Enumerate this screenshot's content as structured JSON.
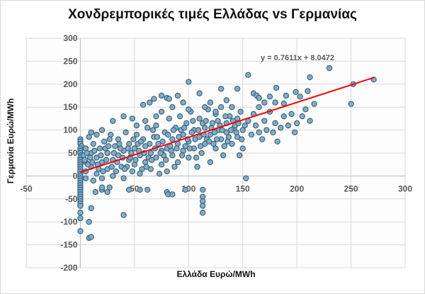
{
  "chart_data": {
    "type": "scatter",
    "title": "Χονδρεμπορικές τιμές Ελλάδας vs Γερμανίας",
    "xlabel": "Ελλάδα Ευρώ/MWh",
    "ylabel": "Γερμανία Ευρώ/MWh",
    "xlim": [
      -50,
      300
    ],
    "ylim": [
      -200,
      300
    ],
    "xticks": [
      "-50",
      "0",
      "50",
      "100",
      "150",
      "200",
      "250",
      "300"
    ],
    "xtick_values": [
      -50,
      0,
      50,
      100,
      150,
      200,
      250,
      300
    ],
    "yticks": [
      "300",
      "250",
      "200",
      "150",
      "100",
      "50",
      "0",
      "-50",
      "-100",
      "-150",
      "-200"
    ],
    "ytick_values": [
      300,
      250,
      200,
      150,
      100,
      50,
      0,
      -50,
      -100,
      -150,
      -200
    ],
    "grid": true,
    "legend": "none",
    "trendline": {
      "slope": 0.7611,
      "intercept": 8.0472,
      "x_range": [
        0,
        271
      ],
      "equation": "y = 0.7611x + 8.0472",
      "color": "#ff0000"
    },
    "marker_fill": "#8fa8bf",
    "marker_stroke": "#2e6b8a",
    "points": [
      [
        0,
        80
      ],
      [
        0,
        75
      ],
      [
        0,
        70
      ],
      [
        1,
        65
      ],
      [
        0,
        60
      ],
      [
        0,
        55
      ],
      [
        0,
        50
      ],
      [
        1,
        45
      ],
      [
        0,
        40
      ],
      [
        0,
        35
      ],
      [
        0,
        30
      ],
      [
        0,
        25
      ],
      [
        0,
        20
      ],
      [
        0,
        15
      ],
      [
        0,
        10
      ],
      [
        0,
        5
      ],
      [
        0,
        0
      ],
      [
        0,
        -5
      ],
      [
        0,
        -10
      ],
      [
        0,
        -15
      ],
      [
        0,
        -20
      ],
      [
        0,
        -25
      ],
      [
        0,
        -30
      ],
      [
        0,
        -35
      ],
      [
        0,
        -40
      ],
      [
        0,
        -45
      ],
      [
        0,
        -50
      ],
      [
        0,
        -55
      ],
      [
        0,
        -60
      ],
      [
        0,
        -65
      ],
      [
        0,
        -80
      ],
      [
        0,
        -92
      ],
      [
        0,
        -120
      ],
      [
        8,
        -135
      ],
      [
        10,
        -133
      ],
      [
        8,
        -100
      ],
      [
        10,
        -70
      ],
      [
        40,
        -85
      ],
      [
        45,
        -30
      ],
      [
        14,
        -35
      ],
      [
        20,
        -30
      ],
      [
        20,
        -25
      ],
      [
        25,
        -35
      ],
      [
        27,
        -25
      ],
      [
        55,
        -30
      ],
      [
        62,
        -30
      ],
      [
        80,
        -35
      ],
      [
        81,
        -40
      ],
      [
        85,
        -40
      ],
      [
        97,
        -30
      ],
      [
        113,
        -30
      ],
      [
        113,
        -45
      ],
      [
        113,
        -55
      ],
      [
        113,
        -65
      ],
      [
        113,
        -80
      ],
      [
        153,
        -5
      ],
      [
        230,
        235
      ],
      [
        212,
        215
      ],
      [
        271,
        210
      ],
      [
        252,
        200
      ],
      [
        250,
        157
      ],
      [
        190,
        175
      ],
      [
        155,
        220
      ],
      [
        181,
        192
      ],
      [
        199,
        183
      ],
      [
        203,
        173
      ],
      [
        210,
        185
      ],
      [
        216,
        157
      ],
      [
        175,
        173
      ],
      [
        180,
        160
      ],
      [
        188,
        158
      ],
      [
        160,
        180
      ],
      [
        163,
        175
      ],
      [
        165,
        170
      ],
      [
        170,
        160
      ],
      [
        165,
        150
      ],
      [
        145,
        190
      ],
      [
        130,
        190
      ],
      [
        110,
        180
      ],
      [
        100,
        205
      ],
      [
        90,
        175
      ],
      [
        80,
        170
      ],
      [
        82,
        168
      ],
      [
        75,
        175
      ],
      [
        40,
        130
      ],
      [
        30,
        120
      ],
      [
        20,
        100
      ],
      [
        10,
        95
      ],
      [
        5,
        60
      ],
      [
        5,
        30
      ],
      [
        5,
        10
      ],
      [
        5,
        -5
      ],
      [
        8,
        85
      ],
      [
        10,
        50
      ],
      [
        10,
        20
      ],
      [
        12,
        70
      ],
      [
        15,
        40
      ],
      [
        15,
        5
      ],
      [
        15,
        90
      ],
      [
        18,
        60
      ],
      [
        20,
        30
      ],
      [
        20,
        -5
      ],
      [
        22,
        75
      ],
      [
        25,
        50
      ],
      [
        25,
        15
      ],
      [
        28,
        90
      ],
      [
        30,
        35
      ],
      [
        30,
        0
      ],
      [
        32,
        65
      ],
      [
        35,
        45
      ],
      [
        35,
        80
      ],
      [
        38,
        20
      ],
      [
        40,
        55
      ],
      [
        40,
        -5
      ],
      [
        42,
        95
      ],
      [
        45,
        35
      ],
      [
        45,
        70
      ],
      [
        48,
        10
      ],
      [
        50,
        60
      ],
      [
        50,
        25
      ],
      [
        52,
        90
      ],
      [
        55,
        45
      ],
      [
        55,
        5
      ],
      [
        58,
        80
      ],
      [
        60,
        30
      ],
      [
        60,
        65
      ],
      [
        62,
        105
      ],
      [
        65,
        50
      ],
      [
        65,
        15
      ],
      [
        68,
        85
      ],
      [
        70,
        40
      ],
      [
        70,
        110
      ],
      [
        72,
        70
      ],
      [
        75,
        25
      ],
      [
        75,
        55
      ],
      [
        78,
        95
      ],
      [
        80,
        60
      ],
      [
        80,
        10
      ],
      [
        82,
        125
      ],
      [
        85,
        45
      ],
      [
        85,
        80
      ],
      [
        88,
        105
      ],
      [
        90,
        30
      ],
      [
        90,
        70
      ],
      [
        92,
        130
      ],
      [
        95,
        55
      ],
      [
        95,
        90
      ],
      [
        98,
        115
      ],
      [
        100,
        40
      ],
      [
        100,
        75
      ],
      [
        102,
        140
      ],
      [
        105,
        60
      ],
      [
        105,
        100
      ],
      [
        108,
        20
      ],
      [
        110,
        85
      ],
      [
        110,
        125
      ],
      [
        112,
        50
      ],
      [
        115,
        105
      ],
      [
        115,
        70
      ],
      [
        118,
        145
      ],
      [
        120,
        30
      ],
      [
        120,
        90
      ],
      [
        122,
        115
      ],
      [
        125,
        60
      ],
      [
        125,
        135
      ],
      [
        128,
        100
      ],
      [
        130,
        80
      ],
      [
        130,
        150
      ],
      [
        132,
        45
      ],
      [
        135,
        115
      ],
      [
        135,
        95
      ],
      [
        138,
        130
      ],
      [
        140,
        70
      ],
      [
        140,
        150
      ],
      [
        142,
        105
      ],
      [
        145,
        85
      ],
      [
        145,
        125
      ],
      [
        148,
        140
      ],
      [
        150,
        100
      ],
      [
        150,
        60
      ],
      [
        155,
        120
      ],
      [
        158,
        90
      ],
      [
        160,
        135
      ],
      [
        162,
        110
      ],
      [
        165,
        95
      ],
      [
        168,
        80
      ],
      [
        170,
        120
      ],
      [
        172,
        100
      ],
      [
        175,
        140
      ],
      [
        178,
        95
      ],
      [
        180,
        115
      ],
      [
        182,
        75
      ],
      [
        185,
        105
      ],
      [
        188,
        130
      ],
      [
        192,
        110
      ],
      [
        195,
        135
      ],
      [
        198,
        95
      ],
      [
        200,
        115
      ],
      [
        205,
        130
      ],
      [
        208,
        145
      ],
      [
        212,
        120
      ],
      [
        3,
        45
      ],
      [
        7,
        25
      ],
      [
        12,
        -10
      ],
      [
        17,
        15
      ],
      [
        23,
        60
      ],
      [
        27,
        80
      ],
      [
        33,
        10
      ],
      [
        37,
        60
      ],
      [
        43,
        20
      ],
      [
        47,
        50
      ],
      [
        53,
        70
      ],
      [
        57,
        15
      ],
      [
        63,
        40
      ],
      [
        67,
        100
      ],
      [
        73,
        5
      ],
      [
        77,
        45
      ],
      [
        83,
        65
      ],
      [
        87,
        20
      ],
      [
        93,
        100
      ],
      [
        97,
        65
      ],
      [
        103,
        95
      ],
      [
        107,
        40
      ],
      [
        113,
        115
      ],
      [
        117,
        80
      ],
      [
        123,
        70
      ],
      [
        127,
        120
      ],
      [
        133,
        65
      ],
      [
        137,
        85
      ],
      [
        143,
        110
      ],
      [
        147,
        45
      ],
      [
        60,
        120
      ],
      [
        70,
        130
      ],
      [
        75,
        140
      ],
      [
        85,
        150
      ],
      [
        95,
        160
      ],
      [
        100,
        145
      ],
      [
        115,
        150
      ],
      [
        120,
        160
      ],
      [
        125,
        140
      ],
      [
        135,
        165
      ],
      [
        58,
        155
      ],
      [
        64,
        160
      ],
      [
        68,
        168
      ],
      [
        48,
        125
      ],
      [
        52,
        110
      ],
      [
        4,
        35
      ],
      [
        6,
        50
      ],
      [
        9,
        40
      ],
      [
        11,
        30
      ],
      [
        13,
        55
      ],
      [
        16,
        25
      ],
      [
        19,
        45
      ],
      [
        21,
        10
      ],
      [
        24,
        35
      ],
      [
        26,
        65
      ],
      [
        29,
        20
      ],
      [
        31,
        50
      ],
      [
        34,
        30
      ],
      [
        36,
        70
      ],
      [
        39,
        40
      ],
      [
        41,
        15
      ],
      [
        44,
        60
      ],
      [
        46,
        40
      ],
      [
        49,
        80
      ],
      [
        51,
        35
      ],
      [
        54,
        55
      ],
      [
        56,
        75
      ],
      [
        59,
        50
      ],
      [
        61,
        20
      ],
      [
        64,
        70
      ],
      [
        66,
        35
      ],
      [
        69,
        60
      ],
      [
        71,
        85
      ],
      [
        74,
        50
      ],
      [
        76,
        75
      ],
      [
        79,
        35
      ],
      [
        81,
        90
      ],
      [
        84,
        55
      ],
      [
        86,
        100
      ],
      [
        89,
        60
      ],
      [
        91,
        85
      ],
      [
        94,
        45
      ],
      [
        96,
        105
      ],
      [
        99,
        80
      ],
      [
        101,
        60
      ],
      [
        104,
        120
      ],
      [
        106,
        80
      ],
      [
        109,
        100
      ],
      [
        111,
        65
      ],
      [
        114,
        90
      ],
      [
        116,
        120
      ],
      [
        119,
        75
      ],
      [
        121,
        105
      ],
      [
        124,
        95
      ],
      [
        126,
        80
      ],
      [
        129,
        110
      ],
      [
        131,
        100
      ],
      [
        134,
        130
      ],
      [
        136,
        75
      ],
      [
        139,
        100
      ],
      [
        141,
        120
      ],
      [
        144,
        95
      ],
      [
        146,
        115
      ],
      [
        149,
        80
      ],
      [
        152,
        110
      ]
    ]
  }
}
